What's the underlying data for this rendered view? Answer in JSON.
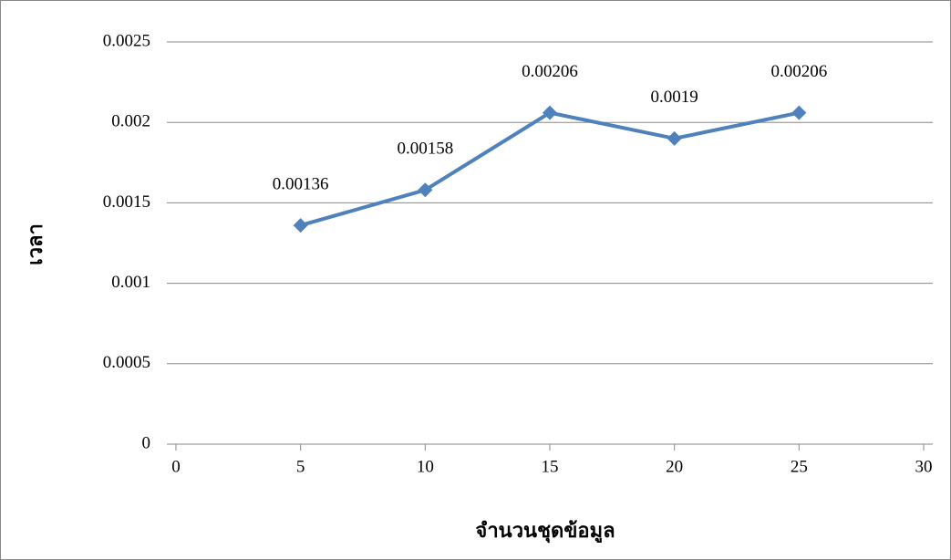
{
  "chart_data": {
    "type": "line",
    "x_label": "จำนวนชุดข้อมูล",
    "y_label": "เวลา",
    "x": [
      5,
      10,
      15,
      20,
      25
    ],
    "series": [
      {
        "name": "เวลา",
        "color": "#4f81bd",
        "values": [
          0.00136,
          0.00158,
          0.00206,
          0.0019,
          0.00206
        ]
      }
    ],
    "xlim": [
      0,
      30
    ],
    "xticks": [
      0,
      5,
      10,
      15,
      20,
      25,
      30
    ],
    "ylim": [
      0,
      0.0025
    ],
    "yticks": [
      0,
      0.0005,
      0.001,
      0.0015,
      0.002,
      0.0025
    ],
    "grid": true
  }
}
